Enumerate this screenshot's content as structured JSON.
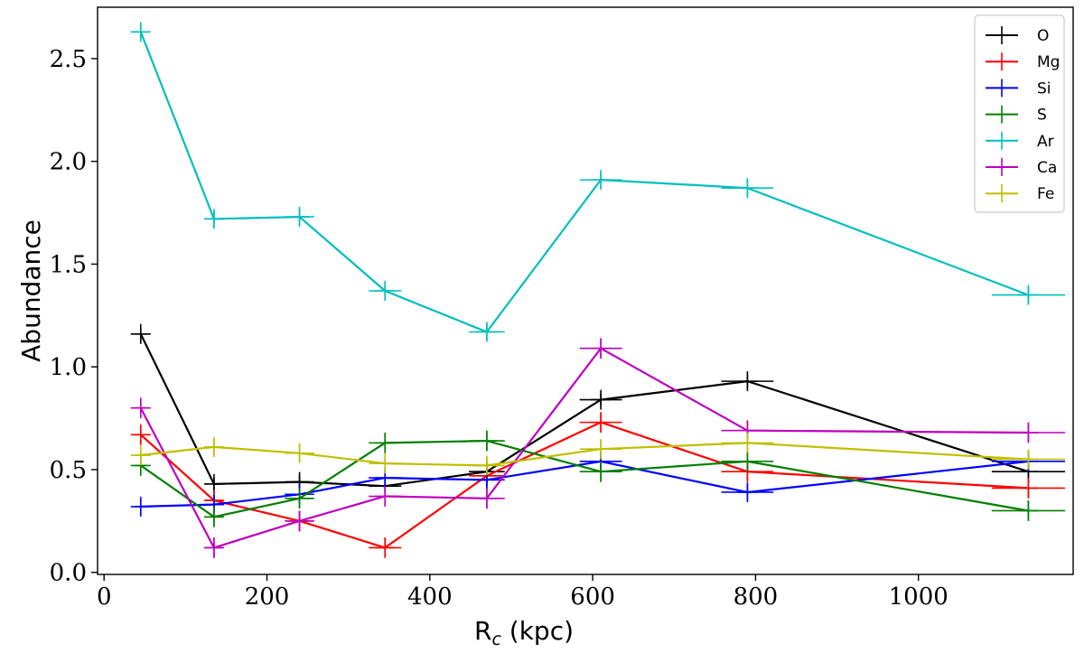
{
  "chart_data": {
    "type": "line",
    "title": "",
    "xlabel": "R",
    "xlabel_subscript": "c",
    "xlabel_suffix": " (kpc)",
    "ylabel": "Abundance",
    "xlim": [
      -8,
      1190
    ],
    "ylim": [
      -0.01,
      2.75
    ],
    "xticks": [
      0,
      200,
      400,
      600,
      800,
      1000
    ],
    "yticks": [
      0.0,
      0.5,
      1.0,
      1.5,
      2.0,
      2.5
    ],
    "ytick_labels": [
      "0.0",
      "0.5",
      "1.0",
      "1.5",
      "2.0",
      "2.5"
    ],
    "legend_position": "top-right",
    "grid": false,
    "x": [
      45,
      135,
      240,
      345,
      470,
      610,
      790,
      1135
    ],
    "x_err": [
      [
        38,
        52
      ],
      [
        124,
        146
      ],
      [
        222,
        258
      ],
      [
        325,
        365
      ],
      [
        448,
        492
      ],
      [
        584,
        636
      ],
      [
        758,
        822
      ],
      [
        1090,
        1180
      ]
    ],
    "series": [
      {
        "name": "O",
        "color": "#000000",
        "values": [
          1.16,
          0.43,
          0.44,
          0.42,
          0.49,
          0.84,
          0.93,
          0.49
        ],
        "y_err": 0.03
      },
      {
        "name": "Mg",
        "color": "#ff0000",
        "values": [
          0.67,
          0.35,
          0.25,
          0.12,
          0.47,
          0.73,
          0.49,
          0.41
        ],
        "y_err": 0.05
      },
      {
        "name": "Si",
        "color": "#0000ff",
        "values": [
          0.32,
          0.33,
          0.38,
          0.46,
          0.45,
          0.54,
          0.39,
          0.54
        ],
        "y_err": 0.04
      },
      {
        "name": "S",
        "color": "#007f00",
        "values": [
          0.52,
          0.27,
          0.36,
          0.63,
          0.64,
          0.49,
          0.54,
          0.3
        ],
        "y_err": 0.05
      },
      {
        "name": "Ar",
        "color": "#00bfbf",
        "values": [
          2.63,
          1.72,
          1.73,
          1.37,
          1.17,
          1.91,
          1.87,
          1.35
        ],
        "y_err": 0.04
      },
      {
        "name": "Ca",
        "color": "#bf00bf",
        "values": [
          0.8,
          0.12,
          0.25,
          0.37,
          0.36,
          1.09,
          0.69,
          0.68
        ],
        "y_err": 0.05
      },
      {
        "name": "Fe",
        "color": "#bfbf00",
        "values": [
          0.57,
          0.61,
          0.58,
          0.53,
          0.52,
          0.6,
          0.63,
          0.55
        ],
        "y_err": 0.04
      }
    ]
  }
}
